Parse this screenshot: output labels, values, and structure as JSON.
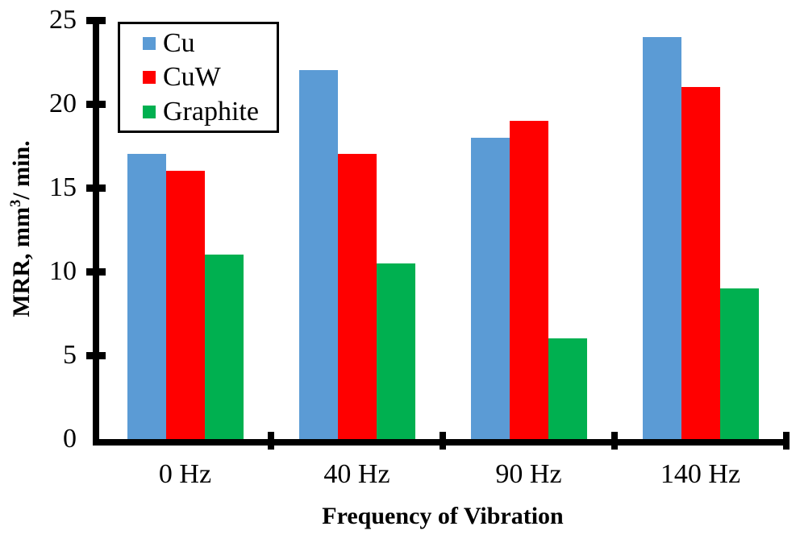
{
  "chart_data": {
    "type": "bar",
    "title": "",
    "categories": [
      "0 Hz",
      "40 Hz",
      "90 Hz",
      "140 Hz"
    ],
    "series": [
      {
        "name": "Cu",
        "color": "#5B9BD5",
        "values": [
          17,
          22,
          18,
          24
        ]
      },
      {
        "name": "CuW",
        "color": "#FF0000",
        "values": [
          16,
          17,
          19,
          21
        ]
      },
      {
        "name": "Graphite",
        "color": "#00B050",
        "values": [
          11,
          10.5,
          6,
          9
        ]
      }
    ],
    "xlabel": "Frequency of Vibration",
    "ylabel": "MRR, mm³/ min.",
    "ylabel_parts": {
      "prefix": "MRR, mm",
      "sup": "3",
      "suffix": "/ min."
    },
    "ylim": [
      0,
      25
    ],
    "yticks": [
      0,
      5,
      10,
      15,
      20,
      25
    ],
    "grid": false,
    "legend_position": "top-left",
    "axis_color": "#000000",
    "background_color": "#FFFFFF",
    "bar_edge": "none"
  }
}
